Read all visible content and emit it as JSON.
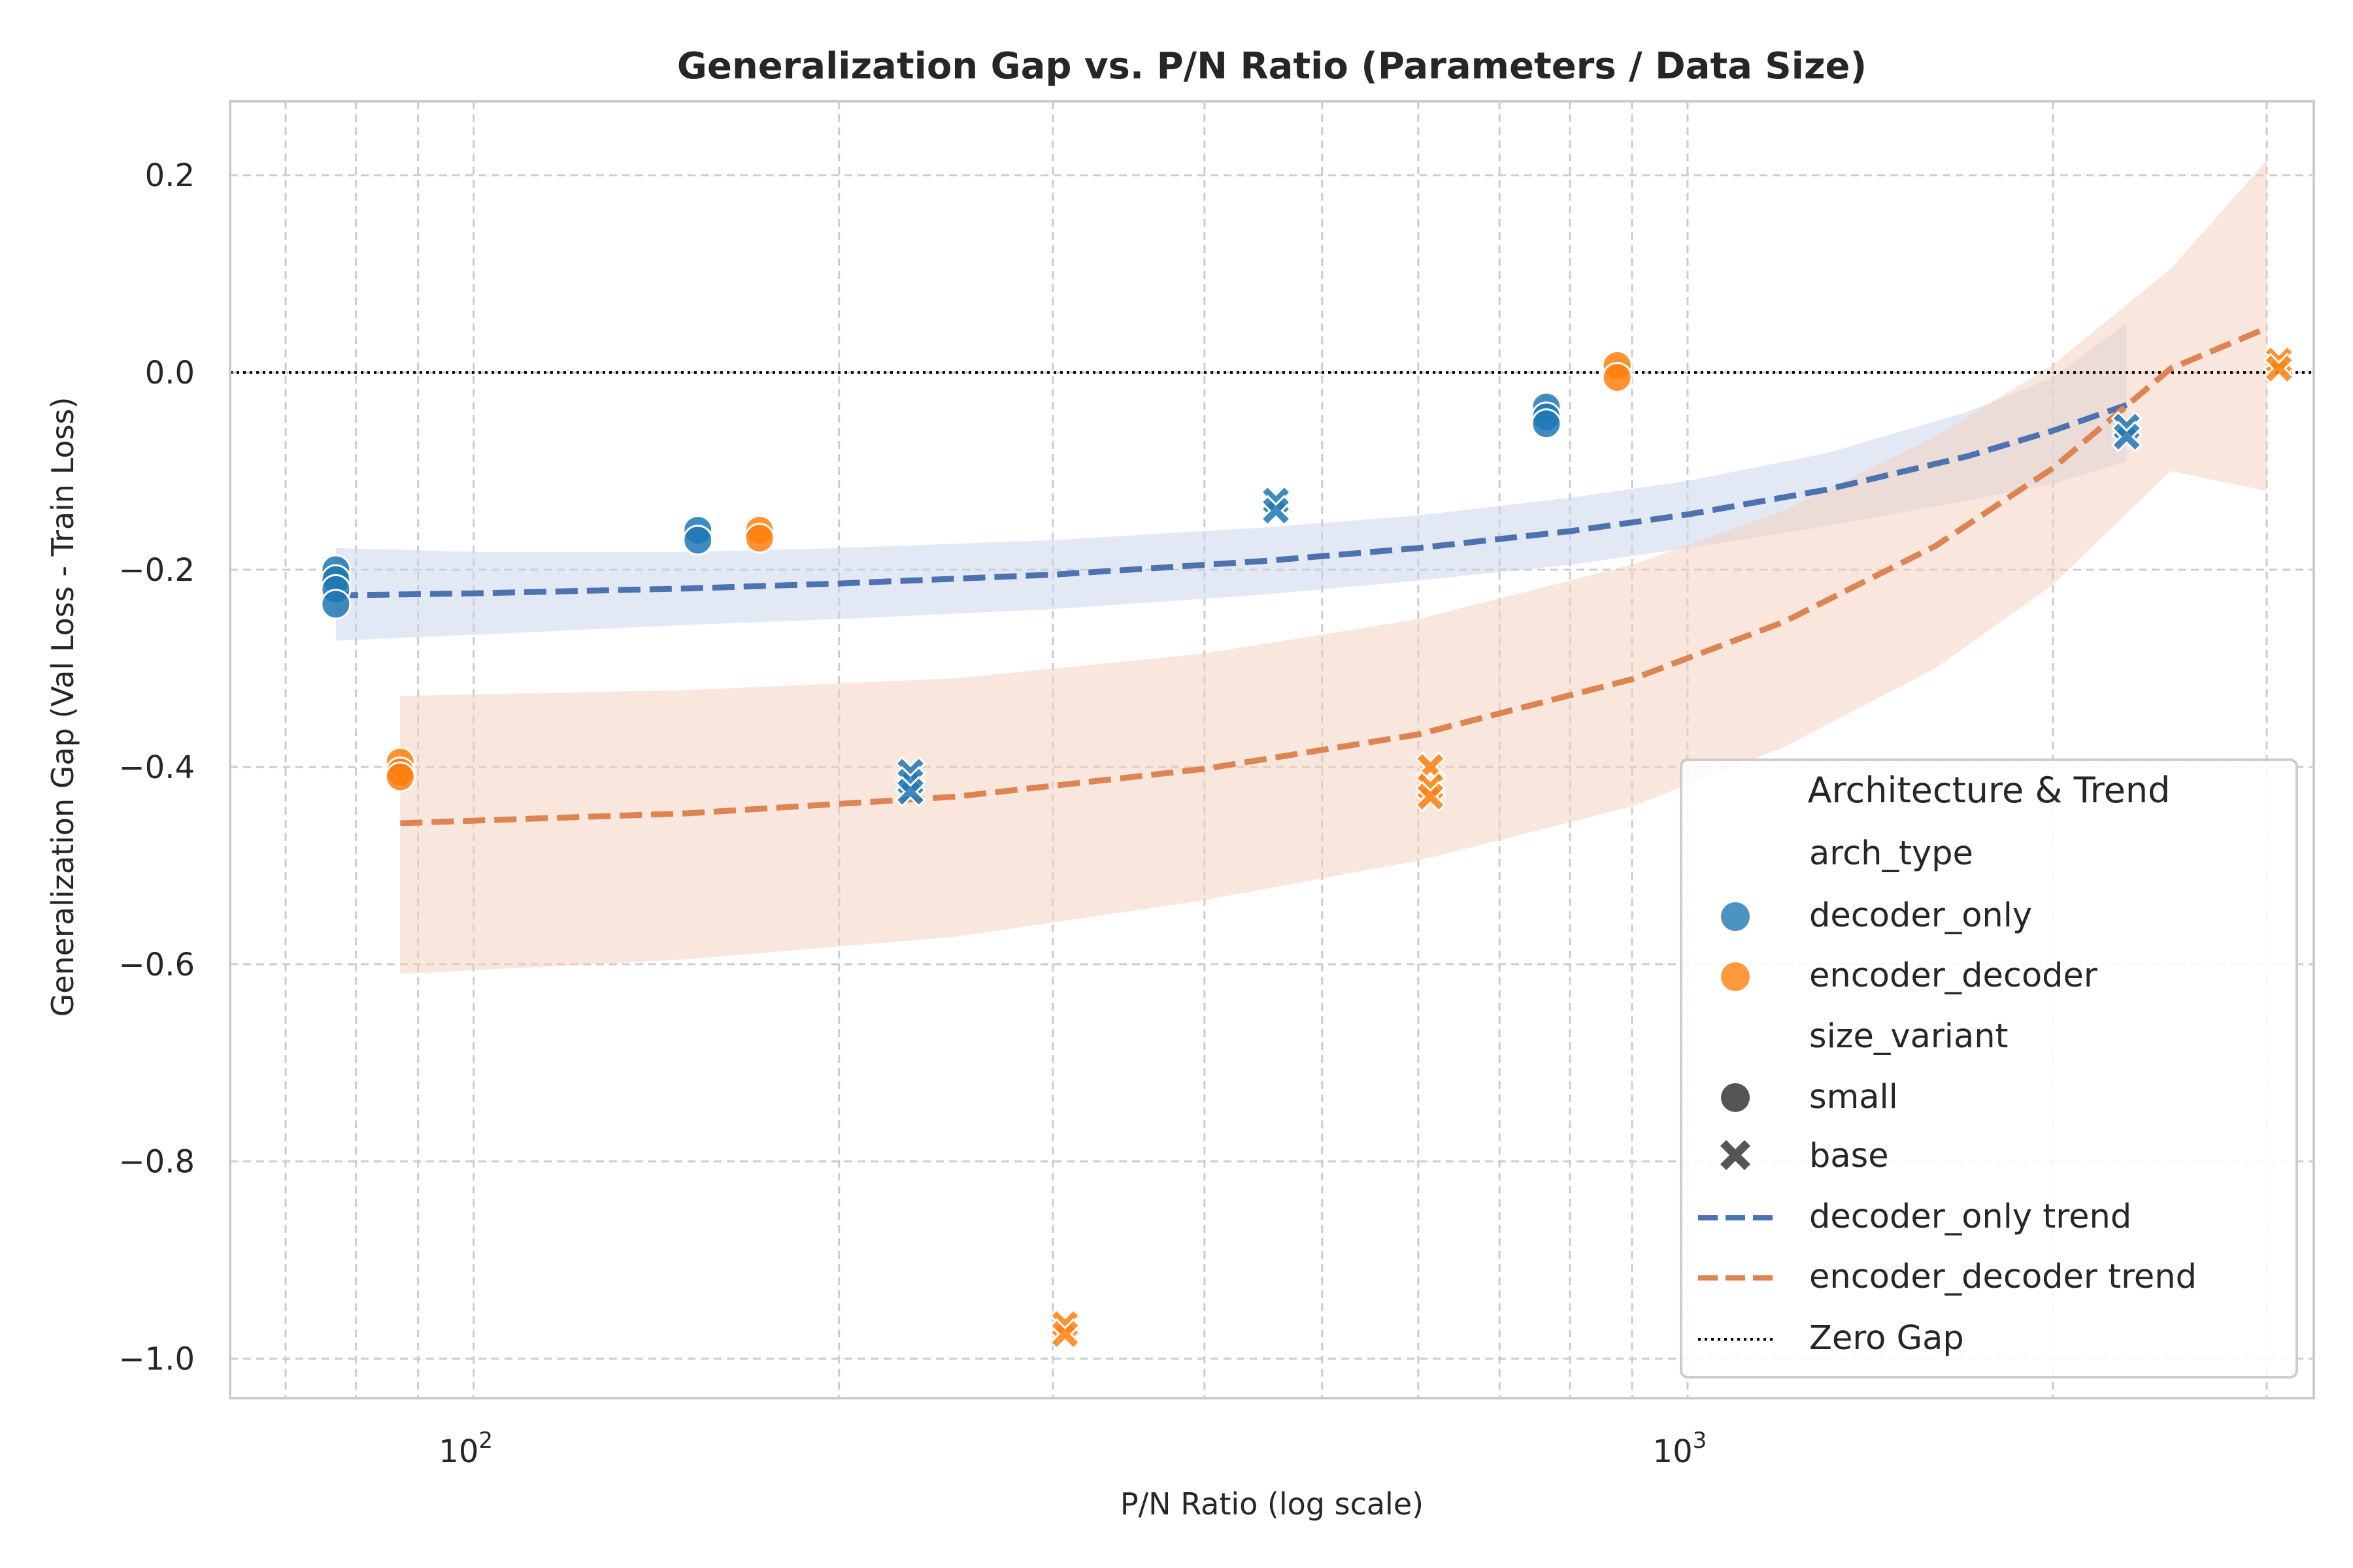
{
  "chart_data": {
    "type": "scatter",
    "title": "Generalization Gap vs. P/N Ratio (Parameters / Data Size)",
    "xlabel": "P/N Ratio (log scale)",
    "ylabel": "Generalization Gap (Val Loss - Train Loss)",
    "x_scale": "log",
    "xlim": [
      63,
      3280
    ],
    "ylim": [
      -1.04,
      0.275
    ],
    "x_ticks": [
      {
        "value": 100,
        "base": "10",
        "exp": "2"
      },
      {
        "value": 1000,
        "base": "10",
        "exp": "3"
      }
    ],
    "y_ticks": [
      {
        "value": 0.2,
        "label": "0.2"
      },
      {
        "value": 0.0,
        "label": "0.0"
      },
      {
        "value": -0.2,
        "label": "−0.2"
      },
      {
        "value": -0.4,
        "label": "−0.4"
      },
      {
        "value": -0.6,
        "label": "−0.6"
      },
      {
        "value": -0.8,
        "label": "−0.8"
      },
      {
        "value": -1.0,
        "label": "−1.0"
      }
    ],
    "grid": true,
    "colors": {
      "decoder_only": "#1f77b4",
      "encoder_decoder": "#ff7f0e",
      "decoder_trend": "#4c72b0",
      "encoder_trend": "#dd8452"
    },
    "series": [
      {
        "name": "decoder_only",
        "points": [
          {
            "x": 77,
            "y": -0.2,
            "marker": "small"
          },
          {
            "x": 77,
            "y": -0.21,
            "marker": "small"
          },
          {
            "x": 77,
            "y": -0.22,
            "marker": "small"
          },
          {
            "x": 77,
            "y": -0.235,
            "marker": "small"
          },
          {
            "x": 153,
            "y": -0.16,
            "marker": "small"
          },
          {
            "x": 153,
            "y": -0.17,
            "marker": "small"
          },
          {
            "x": 229,
            "y": -0.405,
            "marker": "base"
          },
          {
            "x": 229,
            "y": -0.415,
            "marker": "base"
          },
          {
            "x": 229,
            "y": -0.425,
            "marker": "base"
          },
          {
            "x": 458,
            "y": -0.13,
            "marker": "base"
          },
          {
            "x": 458,
            "y": -0.14,
            "marker": "base"
          },
          {
            "x": 765,
            "y": -0.035,
            "marker": "small"
          },
          {
            "x": 765,
            "y": -0.045,
            "marker": "small"
          },
          {
            "x": 765,
            "y": -0.052,
            "marker": "small"
          },
          {
            "x": 2300,
            "y": -0.055,
            "marker": "base"
          },
          {
            "x": 2300,
            "y": -0.065,
            "marker": "base"
          }
        ]
      },
      {
        "name": "encoder_decoder",
        "points": [
          {
            "x": 87,
            "y": -0.395,
            "marker": "small"
          },
          {
            "x": 87,
            "y": -0.405,
            "marker": "small"
          },
          {
            "x": 87,
            "y": -0.41,
            "marker": "small"
          },
          {
            "x": 172,
            "y": -0.16,
            "marker": "small"
          },
          {
            "x": 172,
            "y": -0.168,
            "marker": "small"
          },
          {
            "x": 307,
            "y": -0.965,
            "marker": "base"
          },
          {
            "x": 307,
            "y": -0.975,
            "marker": "base"
          },
          {
            "x": 614,
            "y": -0.4,
            "marker": "base"
          },
          {
            "x": 614,
            "y": -0.42,
            "marker": "base"
          },
          {
            "x": 614,
            "y": -0.43,
            "marker": "base"
          },
          {
            "x": 875,
            "y": 0.007,
            "marker": "small"
          },
          {
            "x": 875,
            "y": -0.005,
            "marker": "small"
          },
          {
            "x": 3070,
            "y": 0.012,
            "marker": "base"
          },
          {
            "x": 3070,
            "y": 0.004,
            "marker": "base"
          }
        ]
      }
    ],
    "trends": [
      {
        "name": "decoder_only trend",
        "x": [
          77,
          100,
          150,
          200,
          300,
          450,
          600,
          800,
          1000,
          1300,
          1700,
          2000,
          2300
        ],
        "y": [
          -0.226,
          -0.224,
          -0.219,
          -0.214,
          -0.205,
          -0.191,
          -0.178,
          -0.161,
          -0.144,
          -0.119,
          -0.085,
          -0.059,
          -0.033
        ],
        "band_upper": [
          -0.178,
          -0.182,
          -0.182,
          -0.178,
          -0.17,
          -0.157,
          -0.145,
          -0.127,
          -0.11,
          -0.082,
          -0.04,
          -0.005,
          0.05
        ],
        "band_lower": [
          -0.272,
          -0.266,
          -0.256,
          -0.25,
          -0.24,
          -0.225,
          -0.211,
          -0.195,
          -0.178,
          -0.156,
          -0.13,
          -0.113,
          -0.09
        ]
      },
      {
        "name": "encoder_decoder trend",
        "x": [
          87,
          150,
          250,
          400,
          600,
          900,
          1200,
          1600,
          2000,
          2500,
          3000
        ],
        "y": [
          -0.457,
          -0.447,
          -0.43,
          -0.402,
          -0.367,
          -0.311,
          -0.253,
          -0.176,
          -0.097,
          0.004,
          0.045
        ],
        "band_upper": [
          -0.328,
          -0.322,
          -0.31,
          -0.285,
          -0.25,
          -0.195,
          -0.14,
          -0.065,
          0.008,
          0.105,
          0.215
        ],
        "band_lower": [
          -0.61,
          -0.595,
          -0.572,
          -0.535,
          -0.495,
          -0.44,
          -0.38,
          -0.3,
          -0.215,
          -0.1,
          -0.12
        ]
      }
    ],
    "zero_line": {
      "y": 0,
      "name": "Zero Gap"
    },
    "legend": {
      "title": "Architecture & Trend",
      "placement": "lower-right",
      "hue_header": "arch_type",
      "size_header": "size_variant",
      "hue_items": [
        "decoder_only",
        "encoder_decoder"
      ],
      "size_items": [
        "small",
        "base"
      ],
      "line_items": [
        "decoder_only trend",
        "encoder_decoder trend",
        "Zero Gap"
      ]
    }
  }
}
